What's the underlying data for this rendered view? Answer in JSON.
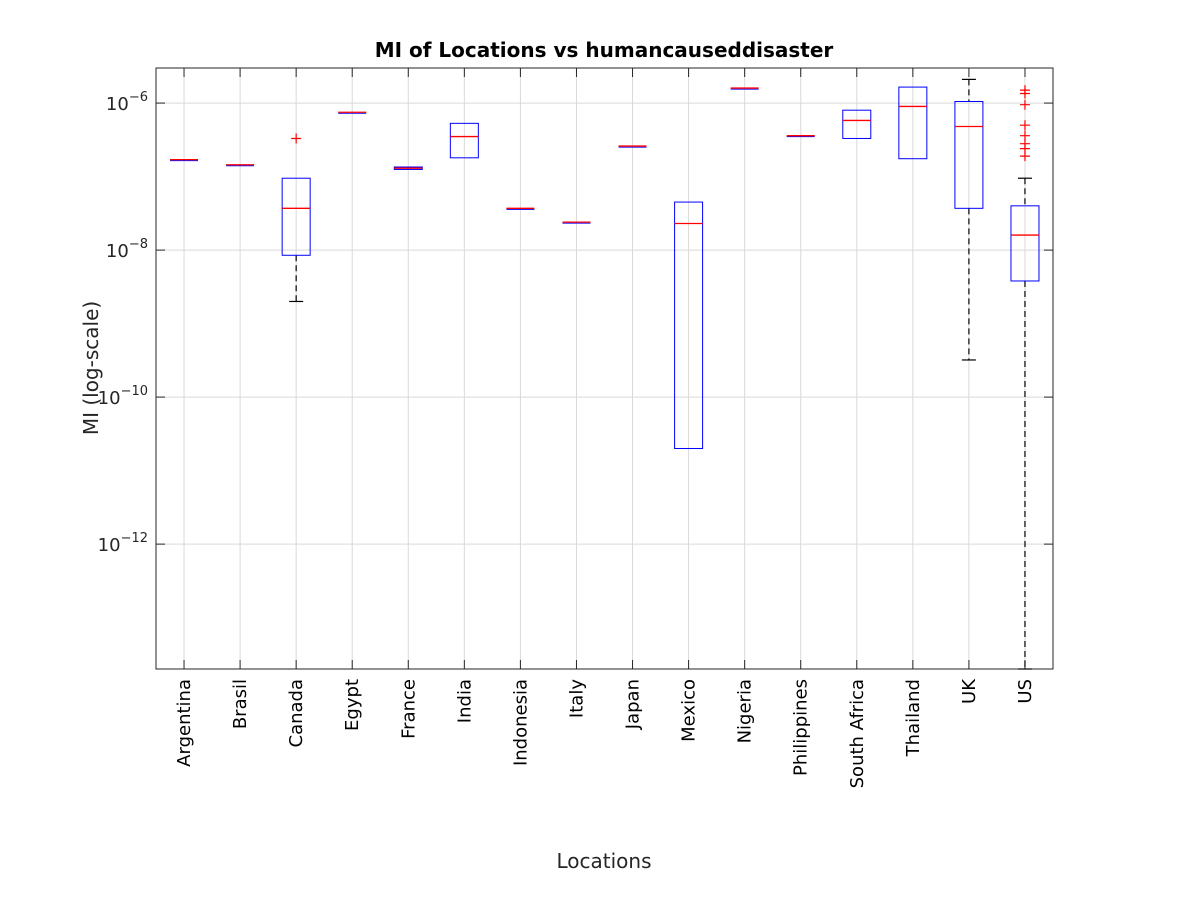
{
  "chart_data": {
    "type": "boxplot",
    "title": "MI of Locations vs humancauseddisaster",
    "xlabel": "Locations",
    "ylabel": "MI (log-scale)",
    "y_scale": "log",
    "ylim": [
      2e-14,
      3e-06
    ],
    "y_ticks": [
      {
        "value": 1e-12,
        "base": "10",
        "exp": "−12"
      },
      {
        "value": 1e-10,
        "base": "10",
        "exp": "−10"
      },
      {
        "value": 1e-08,
        "base": "10",
        "exp": "−8"
      },
      {
        "value": 1e-06,
        "base": "10",
        "exp": "−6"
      }
    ],
    "grid": true,
    "categories": [
      "Argentina",
      "Brasil",
      "Canada",
      "Egypt",
      "France",
      "India",
      "Indonesia",
      "Italy",
      "Japan",
      "Mexico",
      "Nigeria",
      "Philippines",
      "South Africa",
      "Thailand",
      "UK",
      "US"
    ],
    "boxes": [
      {
        "q1": 1.7e-07,
        "median": 1.7e-07,
        "q3": 1.7e-07,
        "lower": 1.7e-07,
        "upper": 1.7e-07,
        "outliers": []
      },
      {
        "q1": 1.45e-07,
        "median": 1.45e-07,
        "q3": 1.45e-07,
        "lower": 1.45e-07,
        "upper": 1.45e-07,
        "outliers": []
      },
      {
        "q1": 8.5e-09,
        "median": 3.7e-08,
        "q3": 9.5e-08,
        "lower": 2e-09,
        "upper": 9.5e-08,
        "outliers": [
          3.3e-07
        ]
      },
      {
        "q1": 7.5e-07,
        "median": 7.5e-07,
        "q3": 7.5e-07,
        "lower": 7.5e-07,
        "upper": 7.5e-07,
        "outliers": []
      },
      {
        "q1": 1.25e-07,
        "median": 1.3e-07,
        "q3": 1.35e-07,
        "lower": 1.25e-07,
        "upper": 1.35e-07,
        "outliers": []
      },
      {
        "q1": 1.8e-07,
        "median": 3.5e-07,
        "q3": 5.3e-07,
        "lower": 1.8e-07,
        "upper": 5.3e-07,
        "outliers": []
      },
      {
        "q1": 3.7e-08,
        "median": 3.7e-08,
        "q3": 3.7e-08,
        "lower": 3.7e-08,
        "upper": 3.7e-08,
        "outliers": []
      },
      {
        "q1": 2.4e-08,
        "median": 2.4e-08,
        "q3": 2.4e-08,
        "lower": 2.4e-08,
        "upper": 2.4e-08,
        "outliers": []
      },
      {
        "q1": 2.6e-07,
        "median": 2.6e-07,
        "q3": 2.6e-07,
        "lower": 2.6e-07,
        "upper": 2.6e-07,
        "outliers": []
      },
      {
        "q1": 2e-11,
        "median": 2.3e-08,
        "q3": 4.5e-08,
        "lower": 2e-11,
        "upper": 4.5e-08,
        "outliers": []
      },
      {
        "q1": 1.6e-06,
        "median": 1.6e-06,
        "q3": 1.6e-06,
        "lower": 1.6e-06,
        "upper": 1.6e-06,
        "outliers": []
      },
      {
        "q1": 3.6e-07,
        "median": 3.6e-07,
        "q3": 3.6e-07,
        "lower": 3.6e-07,
        "upper": 3.6e-07,
        "outliers": []
      },
      {
        "q1": 3.3e-07,
        "median": 5.8e-07,
        "q3": 8e-07,
        "lower": 3.3e-07,
        "upper": 8e-07,
        "outliers": []
      },
      {
        "q1": 1.75e-07,
        "median": 9e-07,
        "q3": 1.65e-06,
        "lower": 1.75e-07,
        "upper": 1.65e-06,
        "outliers": []
      },
      {
        "q1": 3.7e-08,
        "median": 4.8e-07,
        "q3": 1.05e-06,
        "lower": 3.2e-10,
        "upper": 2.1e-06,
        "outliers": []
      },
      {
        "q1": 3.8e-09,
        "median": 1.6e-08,
        "q3": 4e-08,
        "lower": 2e-14,
        "upper": 9.5e-08,
        "outliers": [
          1.5e-06,
          1.35e-06,
          9.5e-07,
          5e-07,
          3.6e-07,
          2.8e-07,
          2.4e-07,
          1.9e-07
        ]
      }
    ],
    "colors": {
      "box": "#0000ff",
      "median": "#ff0000",
      "whisker": "#000000",
      "outlier": "#ff0000",
      "grid": "#d9d9d9"
    }
  }
}
